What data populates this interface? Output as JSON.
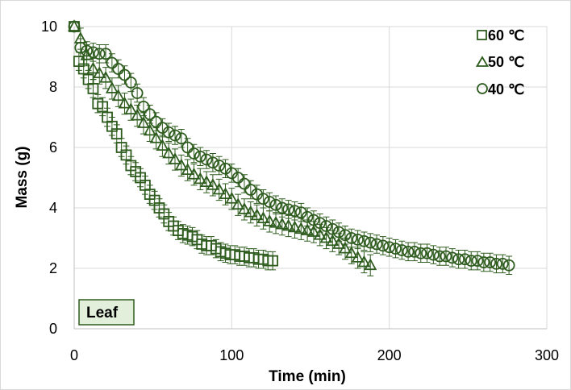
{
  "chart_data": {
    "type": "scatter",
    "title": "",
    "xlabel": "Time (min)",
    "ylabel": "Mass (g)",
    "xlim": [
      0,
      300
    ],
    "ylim": [
      0,
      10
    ],
    "xticks": [
      0,
      100,
      200,
      300
    ],
    "yticks": [
      0,
      2,
      4,
      6,
      8,
      10
    ],
    "grid": true,
    "legend_position": "top-right",
    "annotation": "Leaf",
    "colors": {
      "marker": "#2e5c1e",
      "grid": "#d9d9d9",
      "annotation_fill": "#e2efda"
    },
    "series": [
      {
        "name": "60 ℃",
        "marker": "square",
        "x": [
          0,
          3,
          6,
          9,
          12,
          15,
          18,
          21,
          24,
          27,
          30,
          33,
          36,
          39,
          42,
          45,
          48,
          51,
          54,
          57,
          60,
          63,
          66,
          69,
          72,
          75,
          78,
          81,
          84,
          87,
          90,
          93,
          96,
          99,
          102,
          105,
          108,
          111,
          114,
          117,
          120,
          123,
          126
        ],
        "y": [
          10.0,
          8.85,
          8.6,
          8.25,
          7.95,
          7.45,
          7.35,
          7.0,
          6.7,
          6.45,
          6.0,
          5.75,
          5.4,
          5.2,
          5.0,
          4.75,
          4.45,
          4.25,
          4.0,
          3.8,
          3.55,
          3.4,
          3.25,
          3.15,
          3.1,
          3.05,
          2.95,
          2.8,
          2.75,
          2.75,
          2.65,
          2.55,
          2.5,
          2.45,
          2.45,
          2.4,
          2.4,
          2.35,
          2.35,
          2.3,
          2.3,
          2.25,
          2.25
        ],
        "error": 0.3
      },
      {
        "name": "50 ℃",
        "marker": "triangle",
        "x": [
          0,
          4,
          8,
          12,
          16,
          20,
          24,
          28,
          32,
          36,
          40,
          44,
          48,
          52,
          56,
          60,
          64,
          68,
          72,
          76,
          80,
          84,
          88,
          92,
          96,
          100,
          104,
          108,
          112,
          116,
          120,
          124,
          128,
          132,
          136,
          140,
          144,
          148,
          152,
          156,
          160,
          164,
          168,
          172,
          176,
          180,
          184,
          188
        ],
        "y": [
          10.0,
          9.6,
          9.05,
          8.6,
          8.45,
          8.3,
          7.95,
          7.7,
          7.45,
          7.25,
          7.05,
          6.8,
          6.55,
          6.3,
          6.05,
          5.8,
          5.6,
          5.4,
          5.25,
          5.1,
          4.95,
          4.85,
          4.75,
          4.6,
          4.45,
          4.3,
          4.1,
          3.95,
          3.85,
          3.75,
          3.65,
          3.55,
          3.5,
          3.45,
          3.4,
          3.35,
          3.3,
          3.25,
          3.2,
          3.1,
          3.0,
          2.9,
          2.8,
          2.65,
          2.5,
          2.35,
          2.2,
          2.1
        ],
        "error": 0.35
      },
      {
        "name": "40 ℃",
        "marker": "circle",
        "x": [
          0,
          4,
          8,
          12,
          16,
          20,
          24,
          28,
          32,
          36,
          40,
          44,
          48,
          52,
          56,
          60,
          64,
          68,
          72,
          76,
          80,
          84,
          88,
          92,
          96,
          100,
          104,
          108,
          112,
          116,
          120,
          124,
          128,
          132,
          136,
          140,
          144,
          148,
          152,
          156,
          160,
          164,
          168,
          172,
          176,
          180,
          184,
          188,
          192,
          196,
          200,
          204,
          208,
          212,
          216,
          220,
          224,
          228,
          232,
          236,
          240,
          244,
          248,
          252,
          256,
          260,
          264,
          268,
          272,
          276
        ],
        "y": [
          10.0,
          9.3,
          9.2,
          9.15,
          9.1,
          9.1,
          8.8,
          8.6,
          8.4,
          8.15,
          7.8,
          7.35,
          7.1,
          6.85,
          6.65,
          6.5,
          6.4,
          6.3,
          6.0,
          5.8,
          5.7,
          5.6,
          5.5,
          5.4,
          5.3,
          5.15,
          5.0,
          4.8,
          4.6,
          4.45,
          4.3,
          4.2,
          4.1,
          4.0,
          3.95,
          3.9,
          3.85,
          3.7,
          3.6,
          3.5,
          3.4,
          3.3,
          3.2,
          3.1,
          3.0,
          2.95,
          2.9,
          2.85,
          2.8,
          2.75,
          2.7,
          2.65,
          2.6,
          2.55,
          2.55,
          2.5,
          2.5,
          2.45,
          2.4,
          2.4,
          2.35,
          2.3,
          2.3,
          2.25,
          2.25,
          2.2,
          2.2,
          2.15,
          2.15,
          2.1
        ],
        "error": 0.3
      }
    ]
  }
}
